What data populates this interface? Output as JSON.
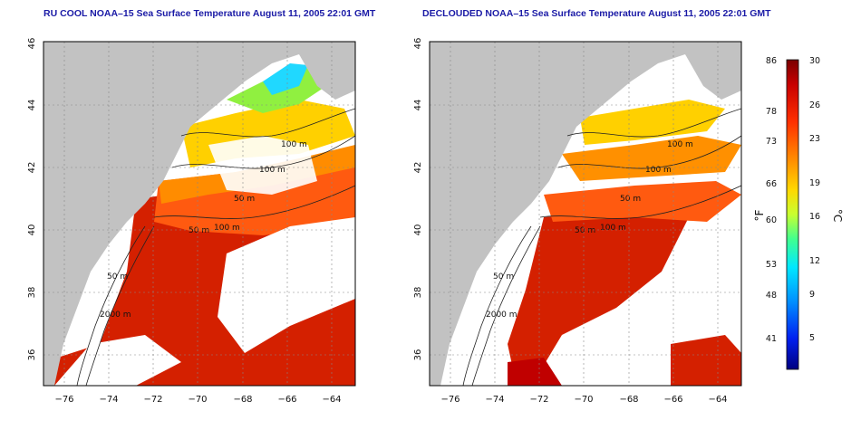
{
  "panels": [
    {
      "title": "RU COOL NOAA–15 Sea Surface Temperature August 11, 2005 22:01 GMT",
      "contour_labels": [
        "100 m",
        "100 m",
        "50 m",
        "50 m",
        "100 m",
        "50 m",
        "2000 m"
      ]
    },
    {
      "title": "DECLOUDED NOAA–15 Sea Surface Temperature August 11, 2005 22:01 GMT",
      "contour_labels": [
        "100 m",
        "100 m",
        "50 m",
        "50 m",
        "100 m",
        "50 m",
        "2000 m"
      ]
    }
  ],
  "axes": {
    "x_ticks": [
      "−76",
      "−74",
      "−72",
      "−70",
      "−68",
      "−66",
      "−64"
    ],
    "y_ticks": [
      "46",
      "44",
      "42",
      "40",
      "38",
      "36"
    ],
    "lon_range": [
      -77,
      -63
    ],
    "lat_range": [
      35,
      46
    ]
  },
  "colorbar": {
    "f_label": "°F",
    "c_label": "°C",
    "f_ticks": [
      "86",
      "78",
      "73",
      "66",
      "60",
      "53",
      "48",
      "41"
    ],
    "c_ticks": [
      "30",
      "26",
      "23",
      "19",
      "16",
      "12",
      "9",
      "5"
    ],
    "range_c": [
      2,
      30
    ]
  },
  "colors": {
    "land": "#c2c2c2",
    "cloud": "#ffffff",
    "frame": "#000000",
    "title": "#1a1aa6"
  }
}
